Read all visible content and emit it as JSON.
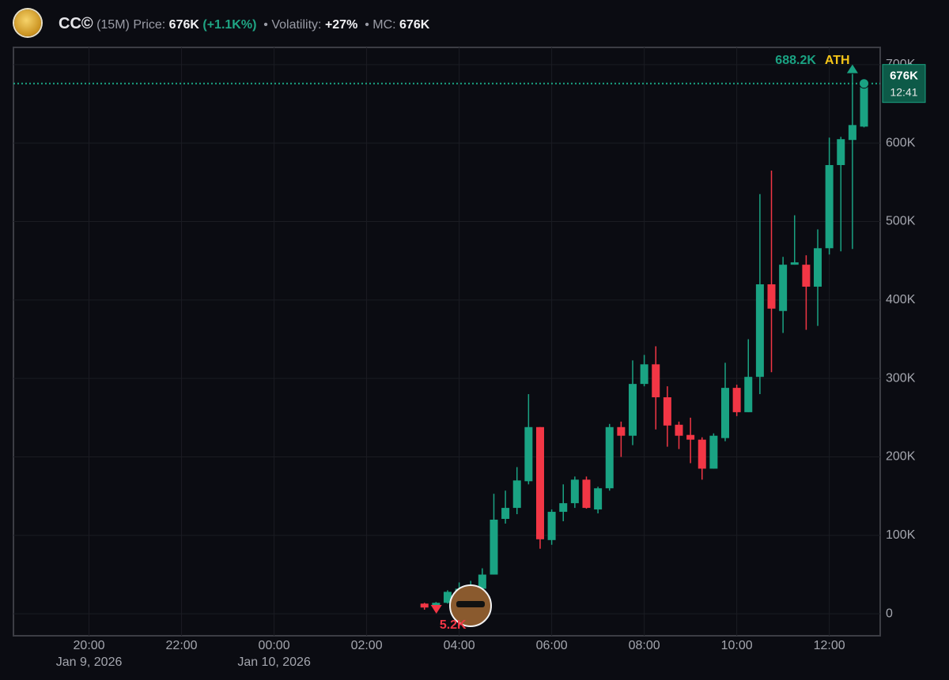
{
  "header": {
    "symbol": "CC©",
    "interval": "(15M)",
    "price_label": "Price:",
    "price": "676K",
    "change": "(+1.1K%)",
    "volatility_label": "• Volatility:",
    "volatility": "+27%",
    "mc_label": "• MC:",
    "mc": "676K"
  },
  "chart_data": {
    "type": "candlestick",
    "x": [
      "2026-01-10T03:15",
      "2026-01-10T03:30",
      "2026-01-10T03:45",
      "2026-01-10T04:00",
      "2026-01-10T04:15",
      "2026-01-10T04:30",
      "2026-01-10T04:45",
      "2026-01-10T05:00",
      "2026-01-10T05:15",
      "2026-01-10T05:30",
      "2026-01-10T05:45",
      "2026-01-10T06:00",
      "2026-01-10T06:15",
      "2026-01-10T06:30",
      "2026-01-10T06:45",
      "2026-01-10T07:00",
      "2026-01-10T07:15",
      "2026-01-10T07:30",
      "2026-01-10T07:45",
      "2026-01-10T08:00",
      "2026-01-10T08:15",
      "2026-01-10T08:30",
      "2026-01-10T08:45",
      "2026-01-10T09:00",
      "2026-01-10T09:15",
      "2026-01-10T09:30",
      "2026-01-10T09:45",
      "2026-01-10T10:00",
      "2026-01-10T10:15",
      "2026-01-10T10:30",
      "2026-01-10T10:45",
      "2026-01-10T11:00",
      "2026-01-10T11:15",
      "2026-01-10T11:30",
      "2026-01-10T11:45",
      "2026-01-10T12:00",
      "2026-01-10T12:15",
      "2026-01-10T12:30",
      "2026-01-10T12:45"
    ],
    "open": [
      13000,
      10000,
      14000,
      28000,
      32000,
      32000,
      50000,
      121000,
      135000,
      169000,
      238000,
      94000,
      130000,
      141000,
      171000,
      133000,
      160000,
      238000,
      227000,
      293000,
      318000,
      276000,
      241000,
      228000,
      222000,
      185000,
      224000,
      288000,
      257000,
      302000,
      420000,
      386000,
      445000,
      445000,
      417000,
      466000,
      572000,
      604000,
      621000
    ],
    "high": [
      14000,
      15000,
      30000,
      40000,
      42000,
      58000,
      153000,
      157000,
      187000,
      280000,
      238000,
      133000,
      165000,
      175000,
      175000,
      162000,
      242000,
      245000,
      323000,
      330000,
      341000,
      290000,
      245000,
      250000,
      225000,
      230000,
      320000,
      292000,
      350000,
      535000,
      565000,
      455000,
      508000,
      457000,
      490000,
      607000,
      608000,
      688200,
      682000
    ],
    "low": [
      5200,
      9000,
      13000,
      20000,
      25000,
      30000,
      50000,
      115000,
      127000,
      165000,
      83000,
      88000,
      118000,
      135000,
      134000,
      128000,
      157000,
      200000,
      215000,
      290000,
      235000,
      213000,
      210000,
      192000,
      171000,
      185000,
      220000,
      252000,
      257000,
      280000,
      308000,
      358000,
      445000,
      362000,
      367000,
      458000,
      462000,
      465000,
      620000
    ],
    "close": [
      8000,
      14000,
      28000,
      32000,
      35000,
      50000,
      120000,
      135000,
      170000,
      238000,
      95000,
      130000,
      141000,
      171000,
      135000,
      160000,
      238000,
      227000,
      293000,
      318000,
      276000,
      240000,
      227000,
      222000,
      185000,
      227000,
      288000,
      257000,
      302000,
      420000,
      389000,
      445000,
      448000,
      417000,
      466000,
      572000,
      605000,
      623000,
      676000
    ],
    "up_color": "#1aa383",
    "down_color": "#f23645",
    "xlim": [
      "2026-01-09T18:22",
      "2026-01-10T13:06"
    ],
    "xticks": [
      {
        "value": "2026-01-09T20:00",
        "label": "20:00"
      },
      {
        "value": "2026-01-09T22:00",
        "label": "22:00"
      },
      {
        "value": "2026-01-10T00:00",
        "label": "00:00"
      },
      {
        "value": "2026-01-10T02:00",
        "label": "02:00"
      },
      {
        "value": "2026-01-10T04:00",
        "label": "04:00"
      },
      {
        "value": "2026-01-10T06:00",
        "label": "06:00"
      },
      {
        "value": "2026-01-10T08:00",
        "label": "08:00"
      },
      {
        "value": "2026-01-10T10:00",
        "label": "10:00"
      },
      {
        "value": "2026-01-10T12:00",
        "label": "12:00"
      }
    ],
    "date_labels": [
      {
        "value": "2026-01-09T20:00",
        "label": "Jan 9, 2026"
      },
      {
        "value": "2026-01-10T00:00",
        "label": "Jan 10, 2026"
      }
    ],
    "ylim": [
      -28000,
      722000
    ],
    "yticks": [
      0,
      {
        "value": 100000,
        "label": "100K"
      },
      {
        "value": 200000,
        "label": "200K"
      },
      {
        "value": 300000,
        "label": "300K"
      },
      {
        "value": 400000,
        "label": "400K"
      },
      {
        "value": 500000,
        "label": "500K"
      },
      {
        "value": 600000,
        "label": "600K"
      },
      {
        "value": 700000,
        "label": "700K"
      }
    ],
    "grid": true,
    "current_price": {
      "value": 676000,
      "label": "676K",
      "countdown": "12:41"
    },
    "ath": {
      "value": 688200,
      "label": "688.2K",
      "text": "ATH"
    },
    "atl": {
      "value": 5200,
      "label": "5.2K"
    }
  }
}
